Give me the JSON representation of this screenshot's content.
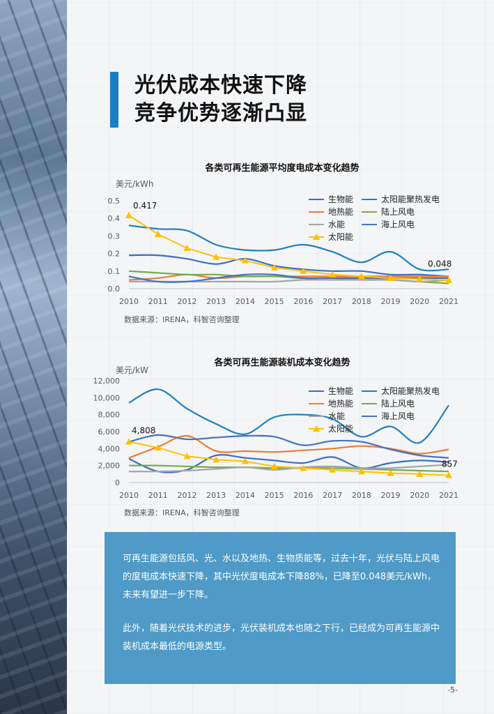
{
  "page": {
    "title_line1": "光伏成本快速下降",
    "title_line2": "竞争优势逐渐凸显",
    "paragraph1": "可再生能源包括风、光、水以及地热、生物质能等，过去十年，光伏与陆上风电的度电成本快速下降，其中光伏度电成本下降88%，已降至0.048美元/kWh，未来有望进一步下降。",
    "paragraph2": "此外，随着光伏技术的进步，光伏装机成本也随之下行，已经成为可再生能源中装机成本最低的电源类型。",
    "page_number": "-5-"
  },
  "colors": {
    "bio": "#3d6cc4",
    "geo": "#ed7d31",
    "hydro": "#a5a5a5",
    "solar": "#ffc000",
    "csp": "#1f7fc0",
    "onshore": "#70ad47",
    "offshore": "#4472c4",
    "accent": "#1a7fc1",
    "box": "#4f9ac6"
  },
  "chart_data": [
    {
      "type": "line",
      "title": "各类可再生能源平均度电成本变化趋势",
      "ylabel": "美元/kWh",
      "source": "数据来源：IRENA，科智咨询整理",
      "x": [
        "2010",
        "2011",
        "2012",
        "2013",
        "2014",
        "2015",
        "2016",
        "2017",
        "2018",
        "2019",
        "2020",
        "2021"
      ],
      "ylim": [
        0,
        0.5
      ],
      "yticks": [
        "0.0",
        "0.1",
        "0.2",
        "0.3",
        "0.4",
        "0.5"
      ],
      "legend_position": "top-right",
      "series": [
        {
          "name": "生物能",
          "key": "bio",
          "values": [
            0.19,
            0.19,
            0.17,
            0.14,
            0.17,
            0.13,
            0.11,
            0.1,
            0.1,
            0.08,
            0.08,
            0.07
          ]
        },
        {
          "name": "太阳能聚热发电",
          "key": "csp",
          "values": [
            0.36,
            0.34,
            0.33,
            0.25,
            0.22,
            0.22,
            0.25,
            0.21,
            0.15,
            0.21,
            0.11,
            0.11
          ]
        },
        {
          "name": "地热能",
          "key": "geo",
          "values": [
            0.05,
            0.06,
            0.08,
            0.06,
            0.07,
            0.07,
            0.07,
            0.07,
            0.07,
            0.07,
            0.07,
            0.07
          ]
        },
        {
          "name": "陆上风电",
          "key": "onshore",
          "values": [
            0.1,
            0.09,
            0.08,
            0.08,
            0.07,
            0.07,
            0.06,
            0.06,
            0.05,
            0.05,
            0.04,
            0.03
          ]
        },
        {
          "name": "水能",
          "key": "hydro",
          "values": [
            0.04,
            0.04,
            0.04,
            0.04,
            0.04,
            0.04,
            0.05,
            0.05,
            0.05,
            0.05,
            0.04,
            0.05
          ]
        },
        {
          "name": "海上风电",
          "key": "offshore",
          "values": [
            0.07,
            0.04,
            0.04,
            0.06,
            0.08,
            0.08,
            0.06,
            0.06,
            0.06,
            0.06,
            0.06,
            0.06
          ]
        },
        {
          "name": "太阳能",
          "key": "solar",
          "marker": "triangle",
          "values": [
            0.417,
            0.31,
            0.23,
            0.18,
            0.16,
            0.12,
            0.1,
            0.08,
            0.07,
            0.06,
            0.055,
            0.048
          ]
        }
      ],
      "annotations": [
        "0.417",
        "0.048"
      ]
    },
    {
      "type": "line",
      "title": "各类可再生能源装机成本变化趋势",
      "ylabel": "美元/kW",
      "source": "数据来源：IRENA，科智咨询整理",
      "x": [
        "2010",
        "2011",
        "2012",
        "2013",
        "2014",
        "2015",
        "2016",
        "2017",
        "2018",
        "2019",
        "2020",
        "2021"
      ],
      "ylim": [
        0,
        12000
      ],
      "yticks": [
        "0",
        "2,000",
        "4,000",
        "6,000",
        "8,000",
        "10,000",
        "12,000"
      ],
      "legend_position": "top-right",
      "series": [
        {
          "name": "生物能",
          "key": "bio",
          "values": [
            2800,
            1300,
            1500,
            3200,
            2900,
            2600,
            2300,
            3000,
            1700,
            2300,
            2600,
            2400
          ]
        },
        {
          "name": "太阳能聚热发电",
          "key": "csp",
          "values": [
            9400,
            11000,
            8700,
            6900,
            5700,
            7700,
            8000,
            7500,
            5400,
            6600,
            4700,
            9100
          ]
        },
        {
          "name": "地热能",
          "key": "geo",
          "values": [
            2900,
            4200,
            5500,
            3700,
            3700,
            3600,
            3800,
            4000,
            4300,
            4000,
            3400,
            3900
          ]
        },
        {
          "name": "陆上风电",
          "key": "onshore",
          "values": [
            2000,
            2000,
            1900,
            1800,
            1800,
            1700,
            1700,
            1700,
            1600,
            1500,
            1400,
            1300
          ]
        },
        {
          "name": "水能",
          "key": "hydro",
          "values": [
            1300,
            1300,
            1400,
            1600,
            1800,
            1500,
            1800,
            1900,
            1700,
            1700,
            1900,
            2100
          ]
        },
        {
          "name": "海上风电",
          "key": "offshore",
          "values": [
            4800,
            5600,
            5100,
            5300,
            5500,
            5400,
            4400,
            4900,
            4800,
            3900,
            3200,
            2900
          ]
        },
        {
          "name": "太阳能",
          "key": "solar",
          "marker": "triangle",
          "values": [
            4808,
            4100,
            3100,
            2700,
            2500,
            1900,
            1700,
            1500,
            1300,
            1100,
            1000,
            857
          ]
        }
      ],
      "annotations": [
        "4,808",
        "857"
      ]
    }
  ]
}
